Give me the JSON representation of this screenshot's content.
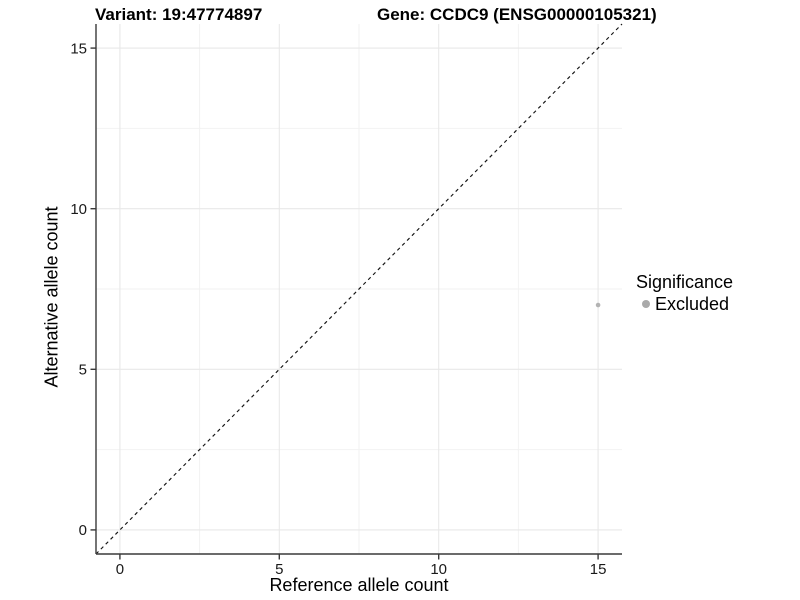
{
  "chart_data": {
    "type": "scatter",
    "title_left": "Variant: 19:47774897",
    "title_right": "Gene: CCDC9 (ENSG00000105321)",
    "xlabel": "Reference allele count",
    "ylabel": "Alternative allele count",
    "xlim": [
      -0.75,
      15.75
    ],
    "ylim": [
      -0.75,
      15.75
    ],
    "x_ticks": [
      0,
      5,
      10,
      15
    ],
    "y_ticks": [
      0,
      5,
      10,
      15
    ],
    "x_minor_ticks": [
      2.5,
      7.5,
      12.5
    ],
    "y_minor_ticks": [
      2.5,
      7.5,
      12.5
    ],
    "grid": "major+minor",
    "identity_line": {
      "style": "dashed",
      "slope": 1,
      "intercept": 0,
      "color": "#141414"
    },
    "series": [
      {
        "name": "Excluded",
        "color": "#b3b3b3",
        "point_radius": 2.3,
        "points": [
          {
            "x": 15,
            "y": 7
          }
        ]
      }
    ],
    "legend": {
      "title": "Significance",
      "position": "right",
      "entries": [
        {
          "label": "Excluded",
          "color": "#aaaaaa"
        }
      ]
    },
    "colors": {
      "background": "#ffffff",
      "axis_line": "#3a3a3a",
      "grid_major": "#e8e8e8",
      "grid_minor": "#f2f2f2",
      "tick_text": "#1a1a1a"
    }
  }
}
